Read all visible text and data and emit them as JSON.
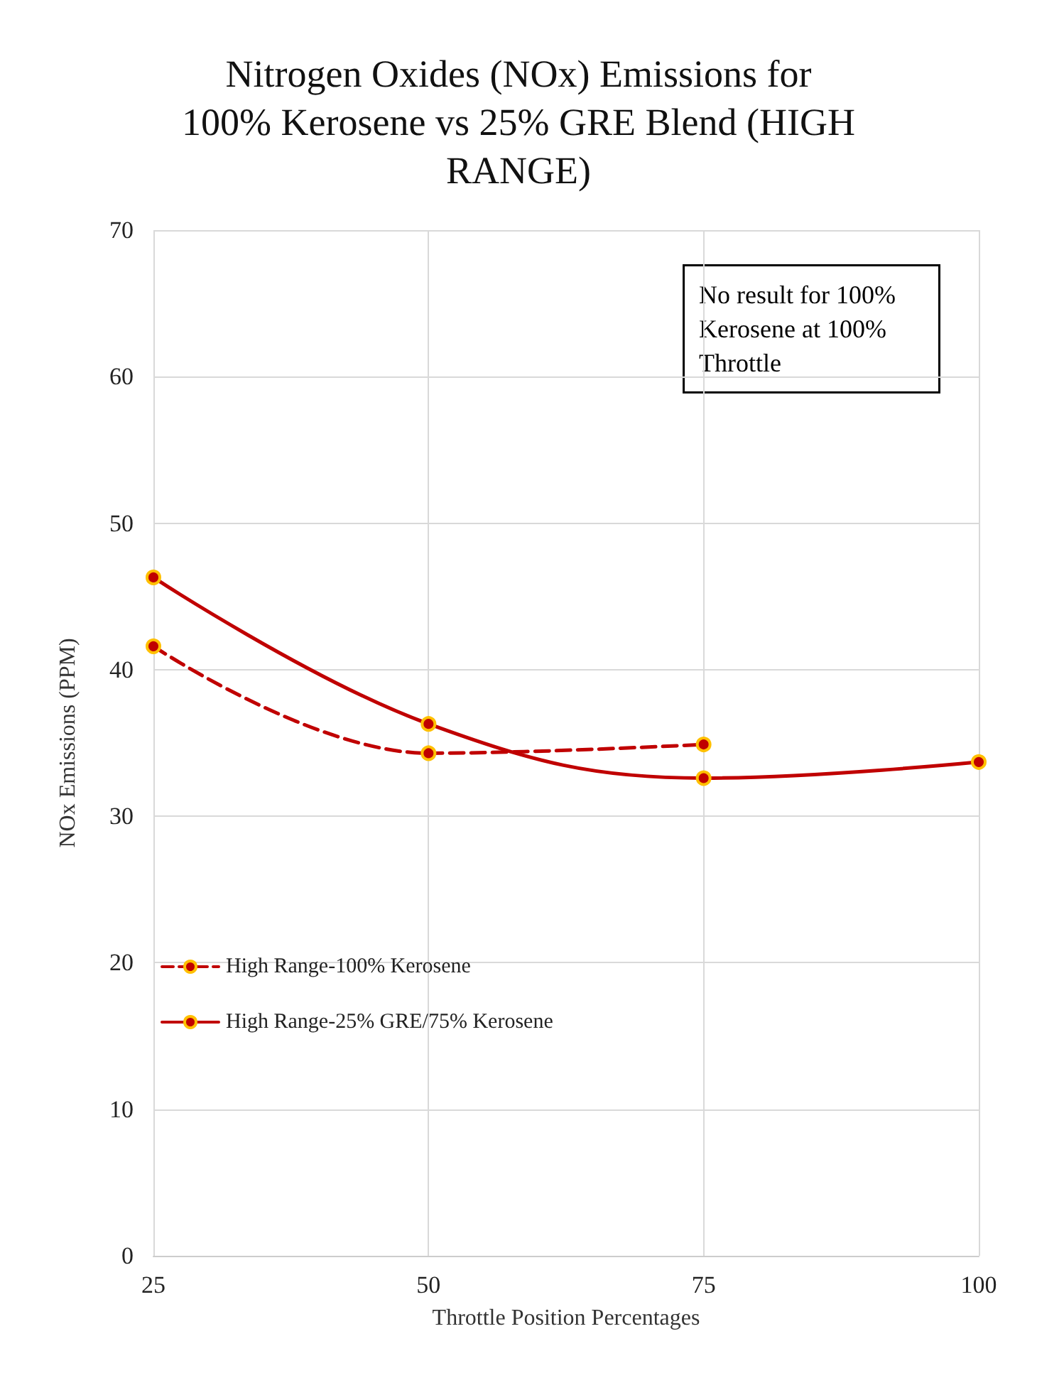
{
  "chart_data": {
    "type": "line",
    "title": "Nitrogen Oxides (NOx) Emissions for\n100% Kerosene vs 25% GRE Blend (HIGH\nRANGE)",
    "xlabel": "Throttle Position Percentages",
    "ylabel": "NOx Emissions (PPM)",
    "x": [
      25,
      50,
      75,
      100
    ],
    "series": [
      {
        "name": "High Range-100% Kerosene",
        "color": "#c00000",
        "line_style": "dashed",
        "values": [
          41.6,
          34.3,
          34.9,
          null
        ]
      },
      {
        "name": "High Range-25% GRE/75% Kerosene",
        "color": "#c00000",
        "line_style": "solid",
        "values": [
          46.3,
          36.3,
          32.6,
          33.7
        ]
      }
    ],
    "xlim": [
      25,
      100
    ],
    "xticks": [
      25,
      50,
      75,
      100
    ],
    "ylim": [
      0,
      70
    ],
    "yticks": [
      0,
      10,
      20,
      30,
      40,
      50,
      60,
      70
    ],
    "grid": true,
    "legend": "left",
    "marker": "circle",
    "annotations": [
      "No result for 100%\nKerosene at 100%\nThrottle"
    ]
  }
}
